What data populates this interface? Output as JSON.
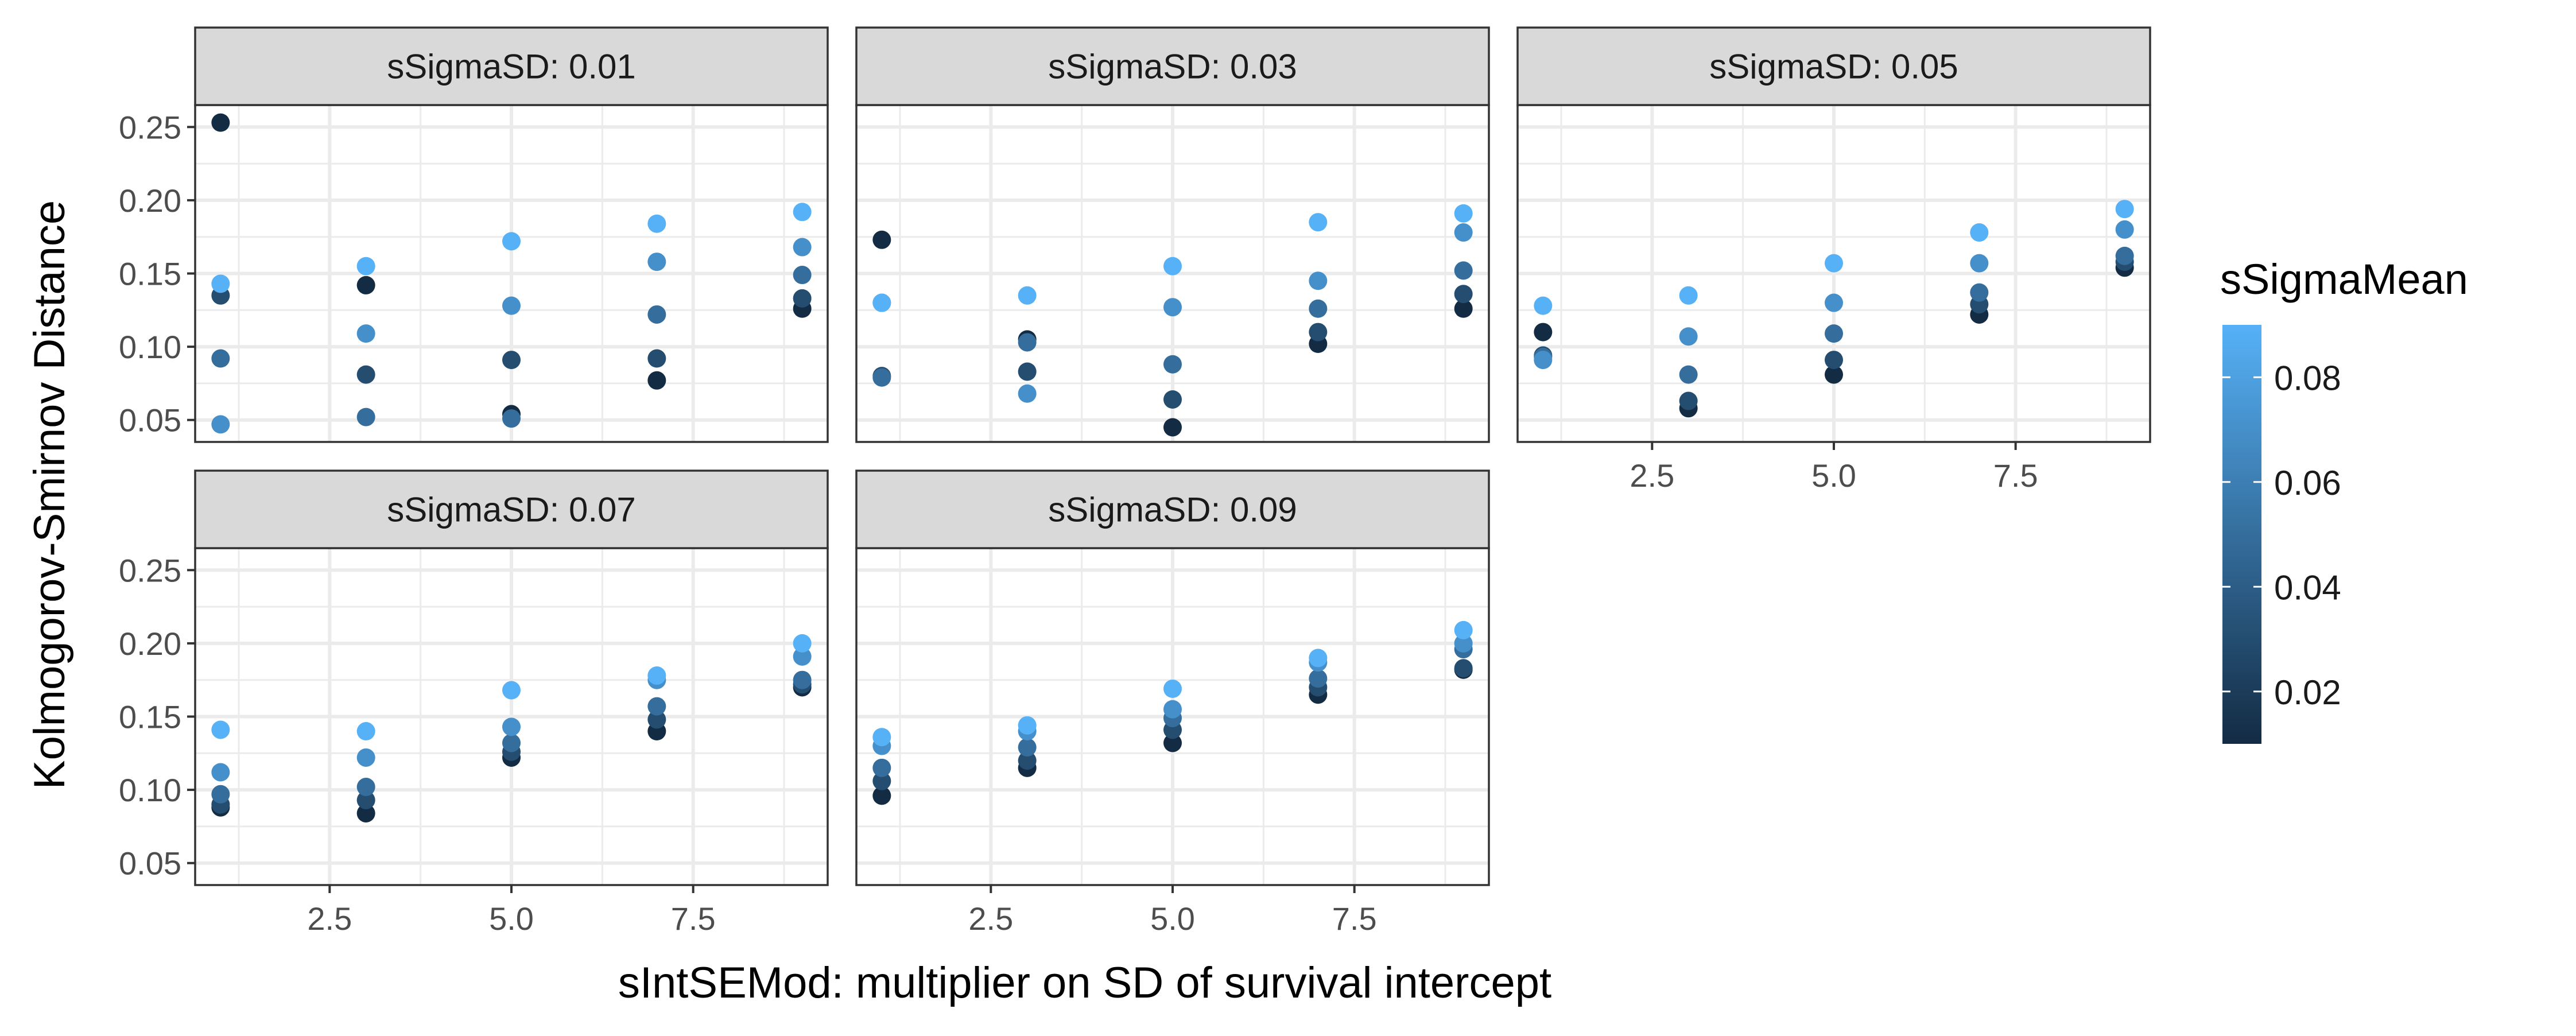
{
  "chart_data": {
    "type": "scatter",
    "facet_var": "sSigmaSD",
    "xlabel": "sIntSEMod: multiplier on SD of survival intercept",
    "ylabel": "Kolmogorov-Smirnov Distance",
    "xlim": [
      0.65,
      9.35
    ],
    "ylim": [
      0.035,
      0.265
    ],
    "x_ticks": [
      2.5,
      5.0,
      7.5
    ],
    "x_tick_labels": [
      "2.5",
      "5.0",
      "7.5"
    ],
    "y_ticks": [
      0.05,
      0.1,
      0.15,
      0.2,
      0.25
    ],
    "y_tick_labels": [
      "0.05",
      "0.10",
      "0.15",
      "0.20",
      "0.25"
    ],
    "grid": true,
    "legend": {
      "title": "sSigmaMean",
      "placement": "right",
      "range": [
        0.01,
        0.09
      ],
      "ticks": [
        0.02,
        0.04,
        0.06,
        0.08
      ],
      "tick_labels": [
        "0.02",
        "0.04",
        "0.06",
        "0.08"
      ],
      "low_color": "#132B43",
      "high_color": "#56B1F7"
    },
    "colors": {
      "strip_fill": "#d9d9d9",
      "panel_border": "#333333",
      "grid": "#ebebeb",
      "axis_text": "#4d4d4d"
    },
    "panels": [
      {
        "label": "sSigmaSD: 0.01",
        "points": [
          {
            "x": 1,
            "y": 0.253,
            "c": 0.01
          },
          {
            "x": 1,
            "y": 0.135,
            "c": 0.03
          },
          {
            "x": 1,
            "y": 0.092,
            "c": 0.05
          },
          {
            "x": 1,
            "y": 0.047,
            "c": 0.07
          },
          {
            "x": 1,
            "y": 0.143,
            "c": 0.09
          },
          {
            "x": 3,
            "y": 0.142,
            "c": 0.01
          },
          {
            "x": 3,
            "y": 0.081,
            "c": 0.03
          },
          {
            "x": 3,
            "y": 0.052,
            "c": 0.05
          },
          {
            "x": 3,
            "y": 0.109,
            "c": 0.07
          },
          {
            "x": 3,
            "y": 0.155,
            "c": 0.09
          },
          {
            "x": 5,
            "y": 0.054,
            "c": 0.01
          },
          {
            "x": 5,
            "y": 0.091,
            "c": 0.03
          },
          {
            "x": 5,
            "y": 0.051,
            "c": 0.05
          },
          {
            "x": 5,
            "y": 0.128,
            "c": 0.07
          },
          {
            "x": 5,
            "y": 0.172,
            "c": 0.09
          },
          {
            "x": 7,
            "y": 0.077,
            "c": 0.01
          },
          {
            "x": 7,
            "y": 0.092,
            "c": 0.03
          },
          {
            "x": 7,
            "y": 0.122,
            "c": 0.05
          },
          {
            "x": 7,
            "y": 0.158,
            "c": 0.07
          },
          {
            "x": 7,
            "y": 0.184,
            "c": 0.09
          },
          {
            "x": 9,
            "y": 0.126,
            "c": 0.01
          },
          {
            "x": 9,
            "y": 0.133,
            "c": 0.03
          },
          {
            "x": 9,
            "y": 0.149,
            "c": 0.05
          },
          {
            "x": 9,
            "y": 0.168,
            "c": 0.07
          },
          {
            "x": 9,
            "y": 0.192,
            "c": 0.09
          }
        ]
      },
      {
        "label": "sSigmaSD: 0.03",
        "points": [
          {
            "x": 1,
            "y": 0.173,
            "c": 0.01
          },
          {
            "x": 1,
            "y": 0.08,
            "c": 0.03
          },
          {
            "x": 1,
            "y": 0.079,
            "c": 0.05
          },
          {
            "x": 1,
            "y": 0.13,
            "c": 0.07
          },
          {
            "x": 1,
            "y": 0.13,
            "c": 0.09
          },
          {
            "x": 3,
            "y": 0.105,
            "c": 0.01
          },
          {
            "x": 3,
            "y": 0.083,
            "c": 0.03
          },
          {
            "x": 3,
            "y": 0.103,
            "c": 0.05
          },
          {
            "x": 3,
            "y": 0.068,
            "c": 0.07
          },
          {
            "x": 3,
            "y": 0.135,
            "c": 0.09
          },
          {
            "x": 5,
            "y": 0.045,
            "c": 0.01
          },
          {
            "x": 5,
            "y": 0.064,
            "c": 0.03
          },
          {
            "x": 5,
            "y": 0.088,
            "c": 0.05
          },
          {
            "x": 5,
            "y": 0.127,
            "c": 0.07
          },
          {
            "x": 5,
            "y": 0.155,
            "c": 0.09
          },
          {
            "x": 7,
            "y": 0.102,
            "c": 0.01
          },
          {
            "x": 7,
            "y": 0.11,
            "c": 0.03
          },
          {
            "x": 7,
            "y": 0.126,
            "c": 0.05
          },
          {
            "x": 7,
            "y": 0.145,
            "c": 0.07
          },
          {
            "x": 7,
            "y": 0.185,
            "c": 0.09
          },
          {
            "x": 9,
            "y": 0.126,
            "c": 0.01
          },
          {
            "x": 9,
            "y": 0.136,
            "c": 0.03
          },
          {
            "x": 9,
            "y": 0.152,
            "c": 0.05
          },
          {
            "x": 9,
            "y": 0.178,
            "c": 0.07
          },
          {
            "x": 9,
            "y": 0.191,
            "c": 0.09
          }
        ]
      },
      {
        "label": "sSigmaSD: 0.05",
        "points": [
          {
            "x": 1,
            "y": 0.11,
            "c": 0.01
          },
          {
            "x": 1,
            "y": 0.094,
            "c": 0.03
          },
          {
            "x": 1,
            "y": 0.093,
            "c": 0.05
          },
          {
            "x": 1,
            "y": 0.091,
            "c": 0.07
          },
          {
            "x": 1,
            "y": 0.128,
            "c": 0.09
          },
          {
            "x": 3,
            "y": 0.058,
            "c": 0.01
          },
          {
            "x": 3,
            "y": 0.063,
            "c": 0.03
          },
          {
            "x": 3,
            "y": 0.081,
            "c": 0.05
          },
          {
            "x": 3,
            "y": 0.107,
            "c": 0.07
          },
          {
            "x": 3,
            "y": 0.135,
            "c": 0.09
          },
          {
            "x": 5,
            "y": 0.081,
            "c": 0.01
          },
          {
            "x": 5,
            "y": 0.091,
            "c": 0.03
          },
          {
            "x": 5,
            "y": 0.109,
            "c": 0.05
          },
          {
            "x": 5,
            "y": 0.13,
            "c": 0.07
          },
          {
            "x": 5,
            "y": 0.157,
            "c": 0.09
          },
          {
            "x": 7,
            "y": 0.122,
            "c": 0.01
          },
          {
            "x": 7,
            "y": 0.129,
            "c": 0.03
          },
          {
            "x": 7,
            "y": 0.137,
            "c": 0.05
          },
          {
            "x": 7,
            "y": 0.157,
            "c": 0.07
          },
          {
            "x": 7,
            "y": 0.178,
            "c": 0.09
          },
          {
            "x": 9,
            "y": 0.154,
            "c": 0.01
          },
          {
            "x": 9,
            "y": 0.158,
            "c": 0.03
          },
          {
            "x": 9,
            "y": 0.162,
            "c": 0.05
          },
          {
            "x": 9,
            "y": 0.18,
            "c": 0.07
          },
          {
            "x": 9,
            "y": 0.194,
            "c": 0.09
          }
        ]
      },
      {
        "label": "sSigmaSD: 0.07",
        "points": [
          {
            "x": 1,
            "y": 0.088,
            "c": 0.01
          },
          {
            "x": 1,
            "y": 0.09,
            "c": 0.03
          },
          {
            "x": 1,
            "y": 0.097,
            "c": 0.05
          },
          {
            "x": 1,
            "y": 0.112,
            "c": 0.07
          },
          {
            "x": 1,
            "y": 0.141,
            "c": 0.09
          },
          {
            "x": 3,
            "y": 0.084,
            "c": 0.01
          },
          {
            "x": 3,
            "y": 0.093,
            "c": 0.03
          },
          {
            "x": 3,
            "y": 0.102,
            "c": 0.05
          },
          {
            "x": 3,
            "y": 0.122,
            "c": 0.07
          },
          {
            "x": 3,
            "y": 0.14,
            "c": 0.09
          },
          {
            "x": 5,
            "y": 0.122,
            "c": 0.01
          },
          {
            "x": 5,
            "y": 0.126,
            "c": 0.03
          },
          {
            "x": 5,
            "y": 0.132,
            "c": 0.05
          },
          {
            "x": 5,
            "y": 0.143,
            "c": 0.07
          },
          {
            "x": 5,
            "y": 0.168,
            "c": 0.09
          },
          {
            "x": 7,
            "y": 0.14,
            "c": 0.01
          },
          {
            "x": 7,
            "y": 0.148,
            "c": 0.03
          },
          {
            "x": 7,
            "y": 0.157,
            "c": 0.05
          },
          {
            "x": 7,
            "y": 0.175,
            "c": 0.07
          },
          {
            "x": 7,
            "y": 0.178,
            "c": 0.09
          },
          {
            "x": 9,
            "y": 0.17,
            "c": 0.01
          },
          {
            "x": 9,
            "y": 0.172,
            "c": 0.03
          },
          {
            "x": 9,
            "y": 0.175,
            "c": 0.05
          },
          {
            "x": 9,
            "y": 0.191,
            "c": 0.07
          },
          {
            "x": 9,
            "y": 0.2,
            "c": 0.09
          }
        ]
      },
      {
        "label": "sSigmaSD: 0.09",
        "points": [
          {
            "x": 1,
            "y": 0.096,
            "c": 0.01
          },
          {
            "x": 1,
            "y": 0.106,
            "c": 0.03
          },
          {
            "x": 1,
            "y": 0.115,
            "c": 0.05
          },
          {
            "x": 1,
            "y": 0.13,
            "c": 0.07
          },
          {
            "x": 1,
            "y": 0.136,
            "c": 0.09
          },
          {
            "x": 3,
            "y": 0.115,
            "c": 0.01
          },
          {
            "x": 3,
            "y": 0.12,
            "c": 0.03
          },
          {
            "x": 3,
            "y": 0.129,
            "c": 0.05
          },
          {
            "x": 3,
            "y": 0.14,
            "c": 0.07
          },
          {
            "x": 3,
            "y": 0.144,
            "c": 0.09
          },
          {
            "x": 5,
            "y": 0.132,
            "c": 0.01
          },
          {
            "x": 5,
            "y": 0.141,
            "c": 0.03
          },
          {
            "x": 5,
            "y": 0.149,
            "c": 0.05
          },
          {
            "x": 5,
            "y": 0.155,
            "c": 0.07
          },
          {
            "x": 5,
            "y": 0.169,
            "c": 0.09
          },
          {
            "x": 7,
            "y": 0.165,
            "c": 0.01
          },
          {
            "x": 7,
            "y": 0.17,
            "c": 0.03
          },
          {
            "x": 7,
            "y": 0.176,
            "c": 0.05
          },
          {
            "x": 7,
            "y": 0.187,
            "c": 0.07
          },
          {
            "x": 7,
            "y": 0.19,
            "c": 0.09
          },
          {
            "x": 9,
            "y": 0.182,
            "c": 0.01
          },
          {
            "x": 9,
            "y": 0.183,
            "c": 0.03
          },
          {
            "x": 9,
            "y": 0.196,
            "c": 0.05
          },
          {
            "x": 9,
            "y": 0.2,
            "c": 0.07
          },
          {
            "x": 9,
            "y": 0.209,
            "c": 0.09
          }
        ]
      }
    ]
  }
}
